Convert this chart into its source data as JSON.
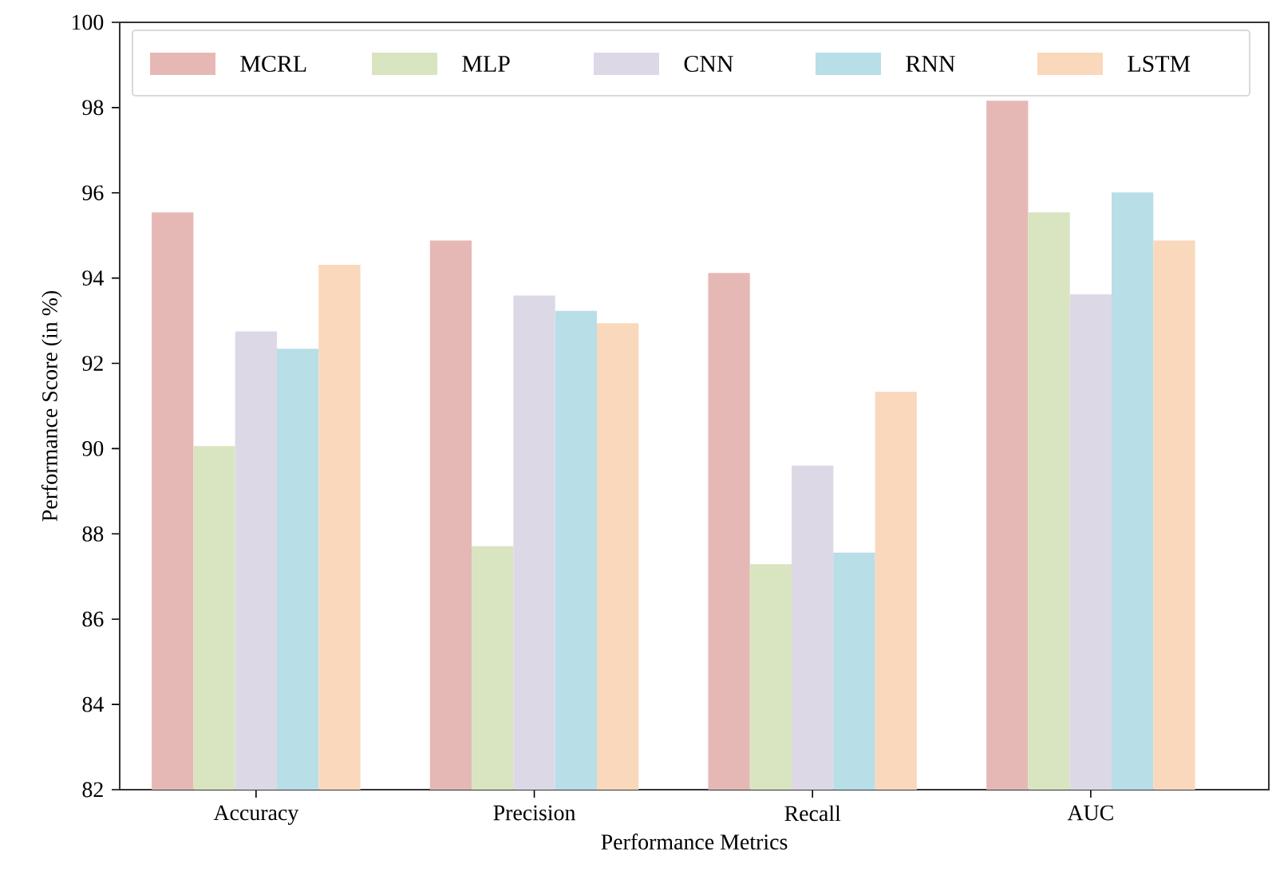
{
  "chart_data": {
    "type": "bar",
    "xlabel": "Performance Metrics",
    "ylabel": "Performance Score (in %)",
    "categories": [
      "Accuracy",
      "Precision",
      "Recall",
      "AUC"
    ],
    "series": [
      {
        "name": "MCRL",
        "color": "#e6b8b5",
        "values": [
          95.54,
          94.88,
          94.12,
          98.16
        ]
      },
      {
        "name": "MLP",
        "color": "#d9e4c0",
        "values": [
          90.06,
          87.71,
          87.29,
          95.54
        ]
      },
      {
        "name": "CNN",
        "color": "#ddd8e6",
        "values": [
          92.75,
          93.59,
          89.6,
          93.62
        ]
      },
      {
        "name": "RNN",
        "color": "#b8dee8",
        "values": [
          92.34,
          93.23,
          87.56,
          96.01
        ]
      },
      {
        "name": "LSTM",
        "color": "#fad8bc",
        "values": [
          94.31,
          92.94,
          91.33,
          94.88
        ]
      }
    ],
    "ylim": [
      82,
      100
    ],
    "yticks": [
      82,
      84,
      86,
      88,
      90,
      92,
      94,
      96,
      98,
      100
    ],
    "grid": false,
    "legend": "top"
  }
}
